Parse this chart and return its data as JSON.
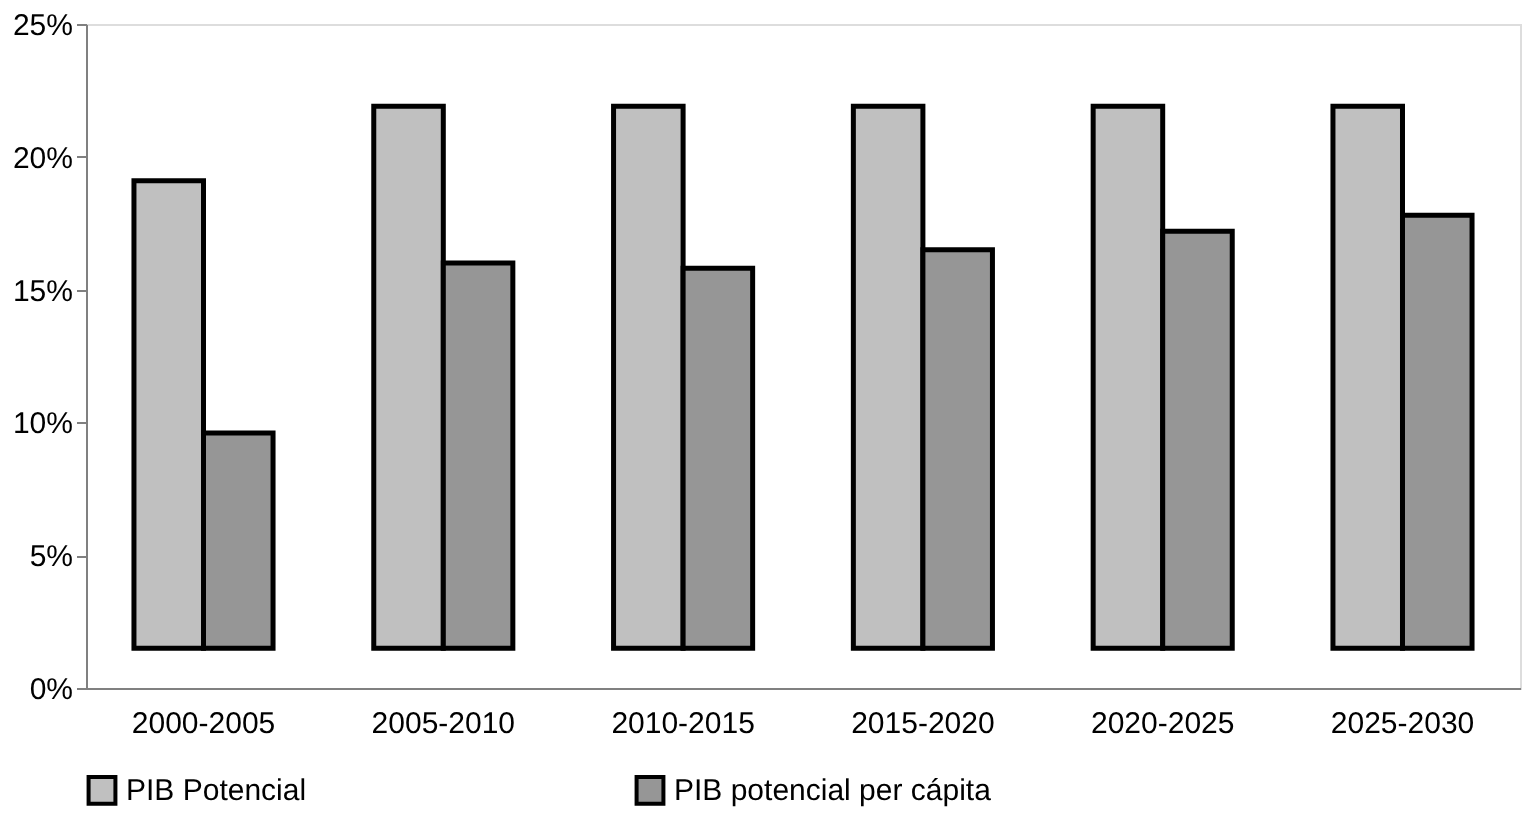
{
  "chart_data": {
    "type": "bar",
    "categories": [
      "2000-2005",
      "2005-2010",
      "2010-2015",
      "2015-2020",
      "2020-2025",
      "2025-2030"
    ],
    "series": [
      {
        "name": "PIB Potencial",
        "color": "#c0c0c0",
        "base": [
          1.5,
          1.5,
          1.5,
          1.5,
          1.5,
          1.5
        ],
        "values": [
          17.6,
          20.4,
          20.4,
          20.4,
          20.4,
          20.4
        ]
      },
      {
        "name": "PIB potencial per cápita",
        "color": "#969696",
        "base": [
          1.5,
          1.5,
          1.5,
          1.5,
          1.5,
          1.5
        ],
        "values": [
          8.1,
          14.5,
          14.3,
          15.0,
          15.7,
          16.3
        ]
      }
    ],
    "ylim": [
      0,
      25
    ],
    "yticks": [
      {
        "value": 0,
        "label": "0%"
      },
      {
        "value": 5,
        "label": "5%"
      },
      {
        "value": 10,
        "label": "10%"
      },
      {
        "value": 15,
        "label": "15%"
      },
      {
        "value": 20,
        "label": "20%"
      },
      {
        "value": 25,
        "label": "25%"
      }
    ],
    "grid": false,
    "legend": "bottom"
  }
}
